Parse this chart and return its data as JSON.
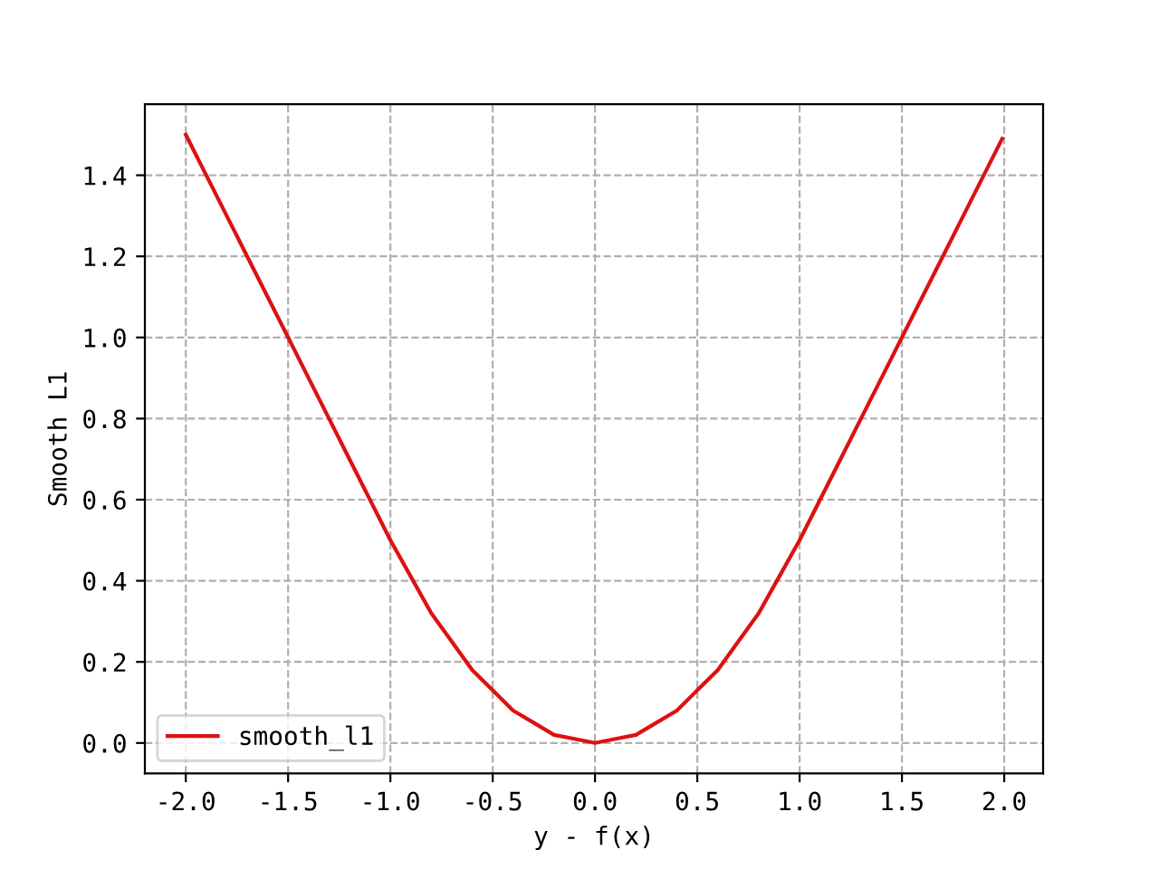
{
  "chart_data": {
    "type": "line",
    "xlabel": "y - f(x)",
    "ylabel": "Smooth L1",
    "x": [
      -2.0,
      -1.9,
      -1.8,
      -1.7,
      -1.6,
      -1.5,
      -1.4,
      -1.3,
      -1.2,
      -1.1,
      -1.0,
      -0.9,
      -0.8,
      -0.7,
      -0.6,
      -0.5,
      -0.4,
      -0.3,
      -0.2,
      -0.1,
      0.0,
      0.1,
      0.2,
      0.3,
      0.4,
      0.5,
      0.6,
      0.7,
      0.8,
      0.9,
      1.0,
      1.1,
      1.2,
      1.3,
      1.4,
      1.5,
      1.6,
      1.7,
      1.8,
      1.9,
      1.99
    ],
    "series": [
      {
        "name": "smooth_l1",
        "color": "#dd1111",
        "values": [
          1.5,
          1.4,
          1.3,
          1.2,
          1.1,
          1.0,
          0.9,
          0.8,
          0.7,
          0.6,
          0.5,
          0.41,
          0.32,
          0.25,
          0.18,
          0.13,
          0.08,
          0.05,
          0.02,
          0.01,
          0.0,
          0.01,
          0.02,
          0.05,
          0.08,
          0.13,
          0.18,
          0.25,
          0.32,
          0.41,
          0.5,
          0.6,
          0.7,
          0.8,
          0.9,
          1.0,
          1.1,
          1.2,
          1.3,
          1.4,
          1.49
        ]
      }
    ],
    "xlim": [
      -2.2,
      2.19
    ],
    "ylim": [
      -0.075,
      1.575
    ],
    "xticks": [
      {
        "value": -2.0,
        "label": "-2.0"
      },
      {
        "value": -1.5,
        "label": "-1.5"
      },
      {
        "value": -1.0,
        "label": "-1.0"
      },
      {
        "value": -0.5,
        "label": "-0.5"
      },
      {
        "value": 0.0,
        "label": "0.0"
      },
      {
        "value": 0.5,
        "label": "0.5"
      },
      {
        "value": 1.0,
        "label": "1.0"
      },
      {
        "value": 1.5,
        "label": "1.5"
      },
      {
        "value": 2.0,
        "label": "2.0"
      }
    ],
    "yticks": [
      {
        "value": 0.0,
        "label": "0.0"
      },
      {
        "value": 0.2,
        "label": "0.2"
      },
      {
        "value": 0.4,
        "label": "0.4"
      },
      {
        "value": 0.6,
        "label": "0.6"
      },
      {
        "value": 0.8,
        "label": "0.8"
      },
      {
        "value": 1.0,
        "label": "1.0"
      },
      {
        "value": 1.2,
        "label": "1.2"
      },
      {
        "value": 1.4,
        "label": "1.4"
      }
    ],
    "grid": true,
    "legend": "bottom left",
    "line_style": "solid",
    "marker": "none"
  }
}
